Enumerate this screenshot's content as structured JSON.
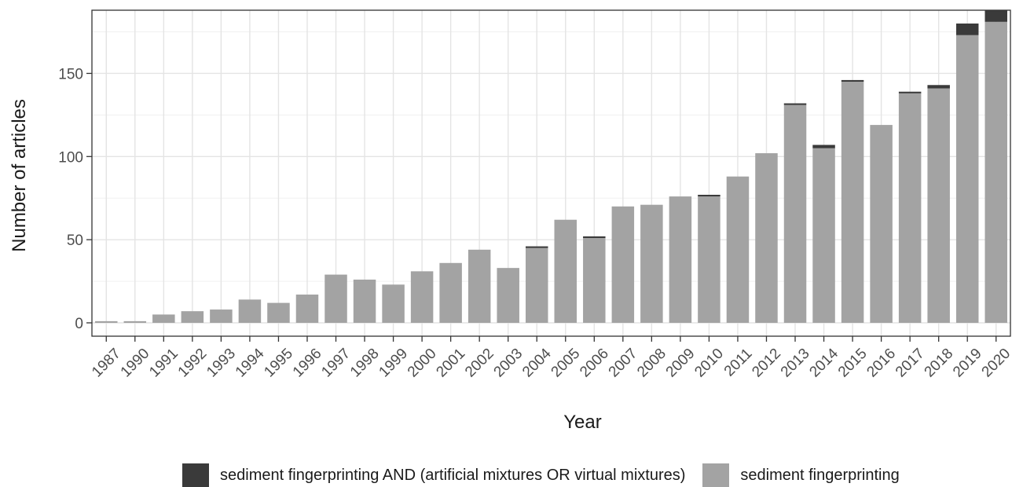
{
  "chart_data": {
    "type": "bar",
    "stacked": true,
    "xlabel": "Year",
    "ylabel": "Number of articles",
    "ylim": [
      0,
      188
    ],
    "yticks": [
      0,
      50,
      100,
      150
    ],
    "grid": true,
    "legend_position": "bottom",
    "categories": [
      "1987",
      "1990",
      "1991",
      "1992",
      "1993",
      "1994",
      "1995",
      "1996",
      "1997",
      "1998",
      "1999",
      "2000",
      "2001",
      "2002",
      "2003",
      "2004",
      "2005",
      "2006",
      "2007",
      "2008",
      "2009",
      "2010",
      "2011",
      "2012",
      "2013",
      "2014",
      "2015",
      "2016",
      "2017",
      "2018",
      "2019",
      "2020"
    ],
    "series": [
      {
        "name": "sediment fingerprinting",
        "color": "#a3a3a3",
        "values": [
          1,
          1,
          5,
          7,
          8,
          14,
          12,
          17,
          29,
          26,
          23,
          31,
          36,
          44,
          33,
          45,
          62,
          51,
          70,
          71,
          76,
          76,
          88,
          102,
          131,
          105,
          145,
          119,
          138,
          141,
          173,
          181
        ]
      },
      {
        "name": "sediment fingerprinting AND (artificial mixtures OR virtual mixtures)",
        "color": "#3a3a3a",
        "values": [
          0,
          0,
          0,
          0,
          0,
          0,
          0,
          0,
          0,
          0,
          0,
          0,
          0,
          0,
          0,
          1,
          0,
          1,
          0,
          0,
          0,
          1,
          0,
          0,
          1,
          2,
          1,
          0,
          1,
          2,
          7,
          7
        ]
      }
    ]
  },
  "legend": {
    "items": [
      {
        "label": "sediment fingerprinting AND (artificial mixtures OR virtual mixtures)",
        "color": "#3a3a3a"
      },
      {
        "label": "sediment fingerprinting",
        "color": "#a3a3a3"
      }
    ]
  }
}
